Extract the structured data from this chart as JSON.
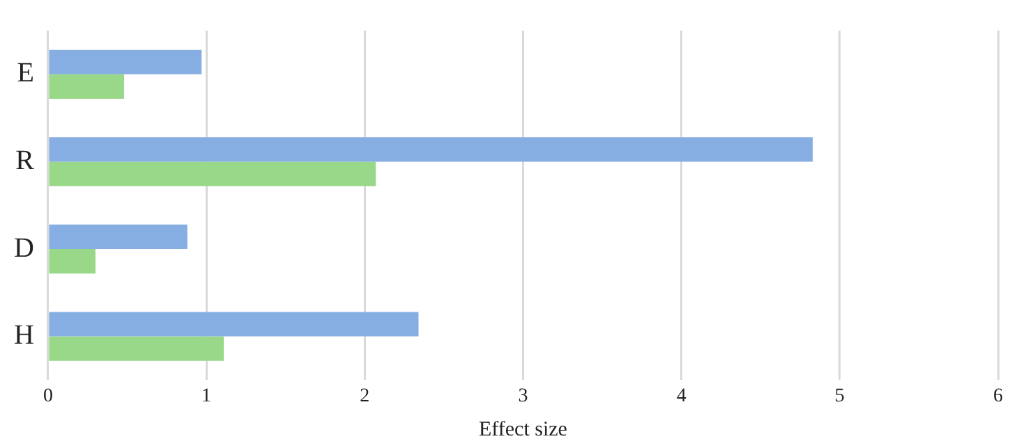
{
  "chart_data": {
    "type": "bar",
    "orientation": "horizontal",
    "xlabel": "Effect size",
    "categories": [
      "E",
      "R",
      "D",
      "H"
    ],
    "series": [
      {
        "color": "#86aee3",
        "values": [
          0.97,
          4.83,
          0.88,
          2.34
        ]
      },
      {
        "color": "#98d888",
        "values": [
          0.48,
          2.07,
          0.3,
          1.11
        ]
      }
    ],
    "xlim": [
      0,
      6
    ],
    "xticks": [
      0,
      1,
      2,
      3,
      4,
      5,
      6
    ],
    "grid": "x",
    "legend": false
  }
}
